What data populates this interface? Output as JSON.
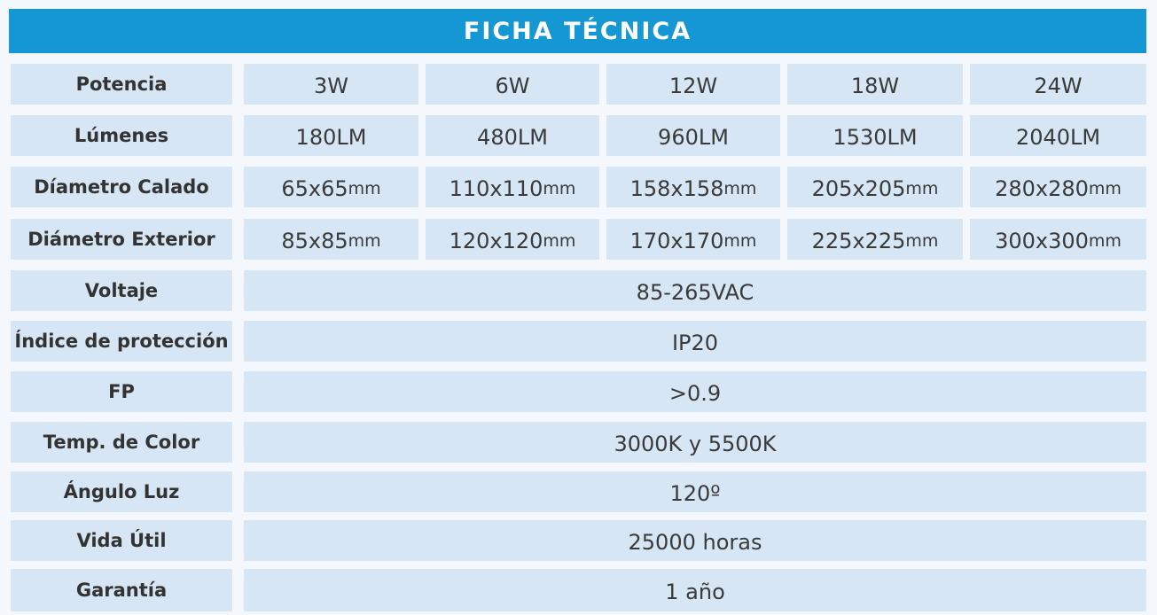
{
  "header": {
    "title": "FICHA TÉCNICA"
  },
  "table": {
    "rows": [
      {
        "label": "Potencia",
        "cells": [
          {
            "text": "3W"
          },
          {
            "text": "6W"
          },
          {
            "text": "12W"
          },
          {
            "text": "18W"
          },
          {
            "text": "24W"
          }
        ]
      },
      {
        "label": "Lúmenes",
        "cells": [
          {
            "text": "180LM"
          },
          {
            "text": "480LM"
          },
          {
            "text": "960LM"
          },
          {
            "text": "1530LM"
          },
          {
            "text": "2040LM"
          }
        ]
      },
      {
        "label": "Díametro Calado",
        "cells": [
          {
            "text": "65x65",
            "unit": "mm"
          },
          {
            "text": "110x110",
            "unit": "mm"
          },
          {
            "text": "158x158",
            "unit": "mm"
          },
          {
            "text": "205x205",
            "unit": "mm"
          },
          {
            "text": "280x280",
            "unit": "mm"
          }
        ]
      },
      {
        "label": "Diámetro Exterior",
        "cells": [
          {
            "text": "85x85",
            "unit": "mm"
          },
          {
            "text": "120x120",
            "unit": "mm"
          },
          {
            "text": "170x170",
            "unit": "mm"
          },
          {
            "text": "225x225",
            "unit": "mm"
          },
          {
            "text": "300x300",
            "unit": "mm"
          }
        ]
      },
      {
        "label": "Voltaje",
        "cells": [
          {
            "text": "85-265VAC"
          }
        ]
      },
      {
        "label": "Índice de protección",
        "cells": [
          {
            "text": "IP20"
          }
        ]
      },
      {
        "label": "FP",
        "cells": [
          {
            "text": ">0.9"
          }
        ]
      },
      {
        "label": "Temp. de Color",
        "cells": [
          {
            "text": "3000K y 5500K"
          }
        ]
      },
      {
        "label": "Ángulo Luz",
        "cells": [
          {
            "text": "120º"
          }
        ]
      },
      {
        "label": "Vida Útil",
        "cells": [
          {
            "text": "25000 horas"
          }
        ]
      },
      {
        "label": "Garantía",
        "cells": [
          {
            "text": "1 año"
          }
        ]
      }
    ]
  }
}
